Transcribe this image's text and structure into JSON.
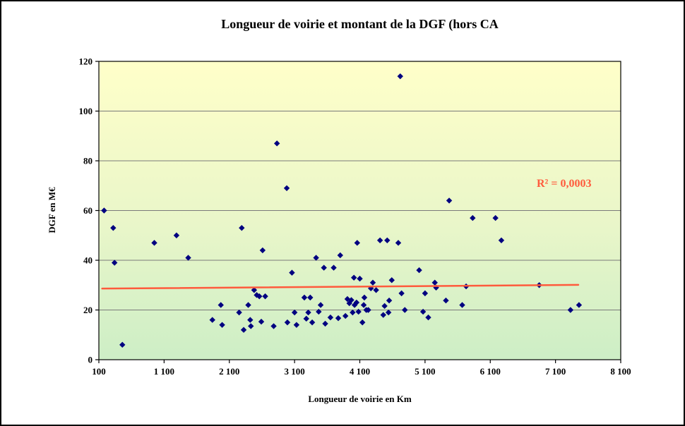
{
  "title": "Longueur de voirie et montant de la DGF (hors CA",
  "chart_data": {
    "type": "scatter",
    "title": "Longueur de voirie et montant de la DGF (hors CA",
    "xlabel": "Longueur de voirie en Km",
    "ylabel": "DGF en M€",
    "xlim": [
      100,
      8100
    ],
    "ylim": [
      0,
      120
    ],
    "grid": "horizontal",
    "legend": "none",
    "x_ticks": {
      "values": [
        100,
        1100,
        2100,
        3100,
        4100,
        5100,
        6100,
        7100,
        8100
      ],
      "labels": [
        "100",
        "1 100",
        "2 100",
        "3 100",
        "4 100",
        "5 100",
        "6 100",
        "7 100",
        "8 100"
      ]
    },
    "y_ticks": {
      "values": [
        0,
        20,
        40,
        60,
        80,
        100,
        120
      ],
      "labels": [
        "0",
        "20",
        "40",
        "60",
        "80",
        "100",
        "120"
      ]
    },
    "marker_color": "#000080",
    "plot_bg_top": "#FFFFC9",
    "plot_bg_mid": "#E9F6C9",
    "plot_bg_bottom": "#CDEEC6",
    "gridline_color": "#7a7a7a",
    "points": [
      [
        180,
        60
      ],
      [
        320,
        53
      ],
      [
        340,
        39
      ],
      [
        460,
        6
      ],
      [
        950,
        47
      ],
      [
        1290,
        50
      ],
      [
        1470,
        41
      ],
      [
        1840,
        16
      ],
      [
        1970,
        22
      ],
      [
        1990,
        14
      ],
      [
        2250,
        19
      ],
      [
        2290,
        53
      ],
      [
        2320,
        12
      ],
      [
        2390,
        22
      ],
      [
        2420,
        16
      ],
      [
        2430,
        13.5
      ],
      [
        2480,
        28
      ],
      [
        2520,
        26
      ],
      [
        2560,
        25.5
      ],
      [
        2590,
        15.3
      ],
      [
        2610,
        44
      ],
      [
        2650,
        25.5
      ],
      [
        2780,
        13.5
      ],
      [
        2830,
        87
      ],
      [
        2980,
        69
      ],
      [
        2990,
        15
      ],
      [
        3060,
        35
      ],
      [
        3100,
        19
      ],
      [
        3130,
        14
      ],
      [
        3250,
        25
      ],
      [
        3280,
        16.5
      ],
      [
        3310,
        19
      ],
      [
        3340,
        25
      ],
      [
        3370,
        15
      ],
      [
        3430,
        41
      ],
      [
        3470,
        19.3
      ],
      [
        3500,
        22
      ],
      [
        3550,
        37
      ],
      [
        3570,
        14.5
      ],
      [
        3650,
        17
      ],
      [
        3700,
        37
      ],
      [
        3770,
        16.7
      ],
      [
        3800,
        42
      ],
      [
        3880,
        17.6
      ],
      [
        3910,
        24.4
      ],
      [
        3940,
        22.7
      ],
      [
        3970,
        24
      ],
      [
        3990,
        19
      ],
      [
        4010,
        33
      ],
      [
        4020,
        22
      ],
      [
        4050,
        23
      ],
      [
        4060,
        47
      ],
      [
        4080,
        19.3
      ],
      [
        4100,
        32.6
      ],
      [
        4140,
        15
      ],
      [
        4160,
        22
      ],
      [
        4170,
        25
      ],
      [
        4200,
        20
      ],
      [
        4230,
        20
      ],
      [
        4270,
        28.7
      ],
      [
        4300,
        31
      ],
      [
        4350,
        28
      ],
      [
        4410,
        48
      ],
      [
        4460,
        18
      ],
      [
        4480,
        21.6
      ],
      [
        4520,
        48
      ],
      [
        4540,
        19
      ],
      [
        4550,
        23.8
      ],
      [
        4590,
        32
      ],
      [
        4690,
        47
      ],
      [
        4720,
        114
      ],
      [
        4740,
        26.7
      ],
      [
        4790,
        20
      ],
      [
        5010,
        36
      ],
      [
        5070,
        19.3
      ],
      [
        5100,
        26.7
      ],
      [
        5150,
        17
      ],
      [
        5250,
        31
      ],
      [
        5270,
        29
      ],
      [
        5420,
        23.8
      ],
      [
        5470,
        64
      ],
      [
        5670,
        22
      ],
      [
        5730,
        29.5
      ],
      [
        5830,
        57
      ],
      [
        6180,
        57
      ],
      [
        6270,
        48
      ],
      [
        6850,
        30
      ],
      [
        7330,
        20
      ],
      [
        7460,
        22
      ]
    ],
    "trendline": {
      "x1": 150,
      "y1": 28.6,
      "x2": 7450,
      "y2": 30.1,
      "color": "#FF5A3C",
      "width": 2.5
    },
    "annotation": {
      "text": "R² = 0,0003",
      "color": "#FF5A3C"
    }
  }
}
